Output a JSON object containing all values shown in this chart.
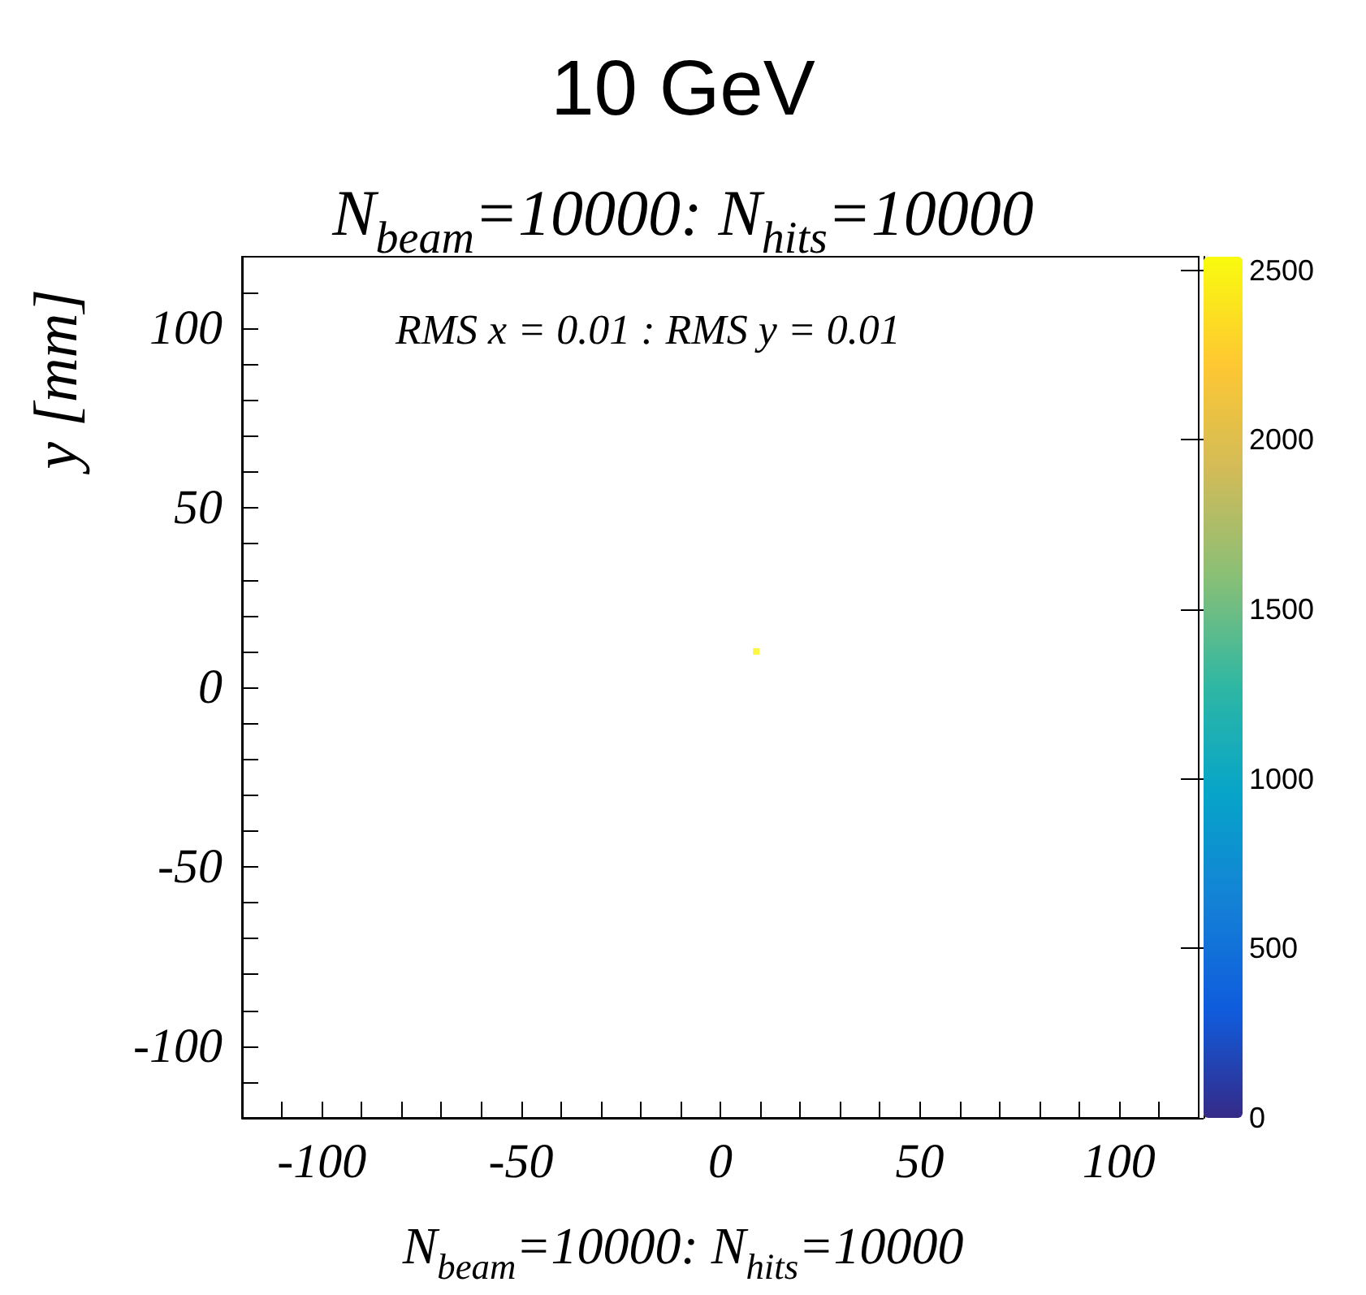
{
  "chart_data": {
    "type": "scatter",
    "title": "10 GeV",
    "subtitle": "N$_{beam}$=10000: N$_{hits}$=10000",
    "ylabel": "y [mm]",
    "annotations": [
      "RMS x = 0.01 : RMS y = 0.01",
      "N$_{beam}$=10000: N$_{hits}$=10000"
    ],
    "x": [
      9
    ],
    "values": [
      10
    ],
    "cvalues": [
      2500
    ],
    "marker": "square",
    "xlim": [
      -120,
      120
    ],
    "ylim": [
      -120,
      120
    ],
    "xticks": [
      {
        "value": -110,
        "label": null
      },
      -100,
      {
        "value": -90,
        "label": null
      },
      {
        "value": -80,
        "label": null
      },
      {
        "value": -70,
        "label": null
      },
      {
        "value": -60,
        "label": null
      },
      -50,
      {
        "value": -40,
        "label": null
      },
      {
        "value": -30,
        "label": null
      },
      {
        "value": -20,
        "label": null
      },
      {
        "value": -10,
        "label": null
      },
      0,
      {
        "value": 10,
        "label": null
      },
      {
        "value": 20,
        "label": null
      },
      {
        "value": 30,
        "label": null
      },
      {
        "value": 40,
        "label": null
      },
      50,
      {
        "value": 60,
        "label": null
      },
      {
        "value": 70,
        "label": null
      },
      {
        "value": 80,
        "label": null
      },
      {
        "value": 90,
        "label": null
      },
      100,
      {
        "value": 110,
        "label": null
      }
    ],
    "yticks": [
      {
        "value": -110,
        "label": null
      },
      -100,
      {
        "value": -90,
        "label": null
      },
      {
        "value": -80,
        "label": null
      },
      {
        "value": -70,
        "label": null
      },
      {
        "value": -60,
        "label": null
      },
      -50,
      {
        "value": -40,
        "label": null
      },
      {
        "value": -30,
        "label": null
      },
      {
        "value": -20,
        "label": null
      },
      {
        "value": -10,
        "label": null
      },
      0,
      {
        "value": 10,
        "label": null
      },
      {
        "value": 20,
        "label": null
      },
      {
        "value": 30,
        "label": null
      },
      {
        "value": 40,
        "label": null
      },
      50,
      {
        "value": 60,
        "label": null
      },
      {
        "value": 70,
        "label": null
      },
      {
        "value": 80,
        "label": null
      },
      {
        "value": 90,
        "label": null
      },
      100,
      {
        "value": 110,
        "label": null
      }
    ],
    "clim": [
      0,
      2540
    ],
    "cticks": [
      0,
      500,
      1000,
      1500,
      2000,
      2500
    ],
    "grid": false
  }
}
